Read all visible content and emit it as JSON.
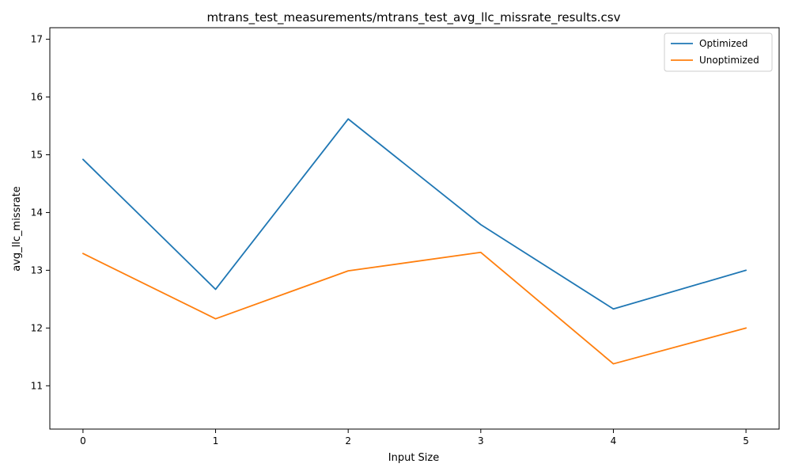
{
  "chart_data": {
    "type": "line",
    "title": "mtrans_test_measurements/mtrans_test_avg_llc_missrate_results.csv",
    "xlabel": "Input Size",
    "ylabel": "avg_llc_missrate",
    "x": [
      0,
      1,
      2,
      3,
      4,
      5
    ],
    "x_ticks": [
      "0",
      "1",
      "2",
      "3",
      "4",
      "5"
    ],
    "y_ticks": [
      "11",
      "12",
      "13",
      "14",
      "15",
      "16",
      "17"
    ],
    "xlim": [
      -0.25,
      5.25
    ],
    "ylim": [
      10.25,
      17.2
    ],
    "grid": false,
    "legend_placement": "top-right",
    "series": [
      {
        "name": "Optimized",
        "color": "#1f77b4",
        "values": [
          14.92,
          12.67,
          15.62,
          13.79,
          12.33,
          13.0
        ]
      },
      {
        "name": "Unoptimized",
        "color": "#ff7f0e",
        "values": [
          13.29,
          12.16,
          12.99,
          13.31,
          11.38,
          12.0
        ]
      }
    ]
  }
}
